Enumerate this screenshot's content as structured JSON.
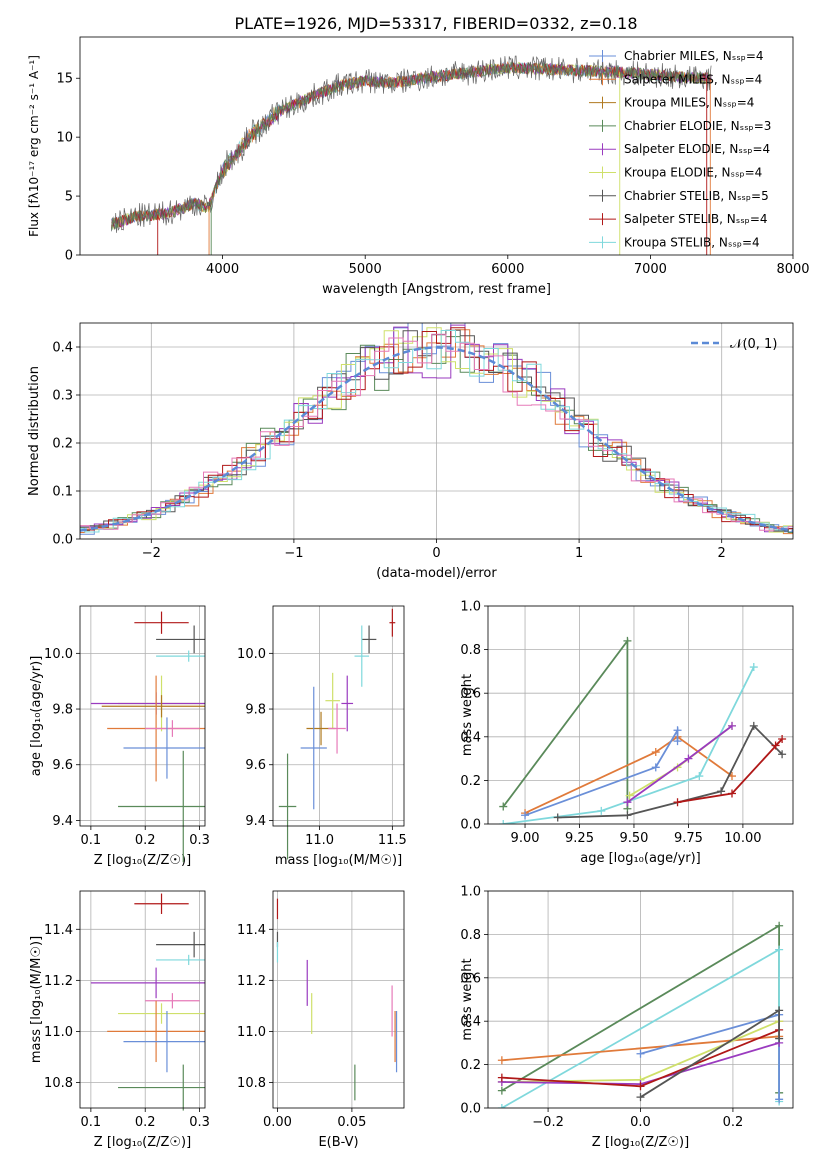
{
  "figure": {
    "title": "PLATE=1926, MJD=53317, FIBERID=0332, z=0.18"
  },
  "colors": {
    "Chabrier MILES": "#6a8fd8",
    "Salpeter MILES": "#e07a3a",
    "Kroupa MILES": "#b07a20",
    "Chabrier ELODIE": "#5a8a5a",
    "Salpeter ELODIE": "#9a3bbf",
    "Kroupa ELODIE": "#cfe06a",
    "Chabrier STELIB": "#555555",
    "Salpeter STELIB": "#b01818",
    "Kroupa STELIB": "#7fd8dc",
    "extra_pink": "#e67ab8",
    "extra_orange": "#e07a3a"
  },
  "chart_data": [
    {
      "id": "spectrum",
      "type": "line",
      "xlabel": "wavelength [Angstrom, rest frame]",
      "ylabel": "Flux [fλ10⁻¹⁷ erg cm⁻² s⁻¹ A⁻¹]",
      "xlim": [
        3000,
        8000
      ],
      "ylim": [
        0,
        18.5
      ],
      "xticks": [
        "4000",
        "5000",
        "6000",
        "7000",
        "8000"
      ],
      "yticks": [
        "0",
        "5",
        "10",
        "15"
      ],
      "legend_position": "right",
      "legend": [
        "Chabrier MILES, Nₛₛₚ=4",
        "Salpeter MILES, Nₛₛₚ=4",
        "Kroupa MILES, Nₛₛₚ=4",
        "Chabrier ELODIE, Nₛₛₚ=3",
        "Salpeter ELODIE, Nₛₛₚ=4",
        "Kroupa ELODIE, Nₛₛₚ=4",
        "Chabrier STELIB, Nₛₛₚ=5",
        "Salpeter STELIB, Nₛₛₚ=4",
        "Kroupa STELIB, Nₛₛₚ=4"
      ],
      "spectrum_anchors": {
        "x": [
          3220,
          3400,
          3600,
          3700,
          3800,
          3900,
          4000,
          4200,
          4400,
          4600,
          4800,
          5000,
          5200,
          5400,
          5600,
          5800,
          6000,
          6200,
          6400,
          6600,
          6800,
          7000,
          7200,
          7400
        ],
        "y": [
          2.6,
          3.3,
          3.5,
          3.9,
          4.4,
          4.0,
          7.2,
          10.2,
          12.2,
          13.3,
          14.3,
          14.8,
          14.6,
          15.0,
          15.3,
          15.6,
          15.9,
          15.8,
          15.7,
          15.6,
          15.5,
          15.3,
          15.1,
          15.0
        ]
      }
    },
    {
      "id": "residuals",
      "type": "line",
      "xlabel": "(data-model)/error",
      "ylabel": "Normed distribution",
      "xlim": [
        -2.5,
        2.5
      ],
      "ylim": [
        0,
        0.45
      ],
      "xticks": [
        "−2",
        "−1",
        "0",
        "1",
        "2"
      ],
      "yticks": [
        "0.0",
        "0.1",
        "0.2",
        "0.3",
        "0.4"
      ],
      "legend": [
        "𝒩(0, 1)"
      ],
      "legend_position": "top-right",
      "bin_width": 0.1
    },
    {
      "id": "age_vs_Z",
      "type": "scatter",
      "xlabel": "Z [log₁₀(Z/Z☉)]",
      "ylabel": "age  [log₁₀(age/yr)]",
      "xlim": [
        0.08,
        0.31
      ],
      "ylim": [
        9.38,
        10.17
      ],
      "xticks": [
        "0.1",
        "0.2",
        "0.3"
      ],
      "yticks": [
        "9.4",
        "9.6",
        "9.8",
        "10.0"
      ],
      "points": [
        {
          "model": "Salpeter STELIB",
          "x": 0.23,
          "y": 10.11,
          "xerr": 0.05,
          "yerr": 0.04
        },
        {
          "model": "Chabrier STELIB",
          "x": 0.29,
          "y": 10.05,
          "xerr": 0.07,
          "yerr": 0.05
        },
        {
          "model": "Kroupa STELIB",
          "x": 0.28,
          "y": 9.99,
          "xerr": 0.06,
          "yerr": 0.02
        },
        {
          "model": "Kroupa ELODIE",
          "x": 0.23,
          "y": 9.82,
          "xerr": 0.08,
          "yerr": 0.1
        },
        {
          "model": "Salpeter ELODIE",
          "x": 0.22,
          "y": 9.82,
          "xerr": 0.12,
          "yerr": 0.04
        },
        {
          "model": "Kroupa MILES",
          "x": 0.23,
          "y": 9.81,
          "xerr": 0.11,
          "yerr": 0.04
        },
        {
          "model": "Salpeter MILES",
          "x": 0.22,
          "y": 9.73,
          "xerr": 0.09,
          "yerr": 0.19
        },
        {
          "model": "extra_pink",
          "x": 0.25,
          "y": 9.73,
          "xerr": 0.05,
          "yerr": 0.03
        },
        {
          "model": "Chabrier MILES",
          "x": 0.24,
          "y": 9.66,
          "xerr": 0.08,
          "yerr": 0.11
        },
        {
          "model": "Chabrier ELODIE",
          "x": 0.27,
          "y": 9.45,
          "xerr": 0.12,
          "yerr": 0.2
        }
      ]
    },
    {
      "id": "age_vs_mass",
      "type": "scatter",
      "xlabel": "mass [log₁₀(M/M☉)]",
      "ylabel": "",
      "xlim": [
        10.68,
        11.58
      ],
      "ylim": [
        9.38,
        10.17
      ],
      "xticks": [
        "11.0",
        "11.5"
      ],
      "yticks": [
        "9.4",
        "9.6",
        "9.8",
        "10.0"
      ],
      "points": [
        {
          "model": "Salpeter STELIB",
          "x": 11.5,
          "y": 10.11,
          "xerr": 0.02,
          "yerr": 0.05
        },
        {
          "model": "Chabrier STELIB",
          "x": 11.34,
          "y": 10.05,
          "xerr": 0.05,
          "yerr": 0.05
        },
        {
          "model": "Kroupa STELIB",
          "x": 11.29,
          "y": 9.99,
          "xerr": 0.05,
          "yerr": 0.11
        },
        {
          "model": "Kroupa ELODIE",
          "x": 11.09,
          "y": 9.83,
          "xerr": 0.05,
          "yerr": 0.1
        },
        {
          "model": "Salpeter ELODIE",
          "x": 11.19,
          "y": 9.82,
          "xerr": 0.04,
          "yerr": 0.1
        },
        {
          "model": "Kroupa MILES",
          "x": 11.01,
          "y": 9.73,
          "xerr": 0.1,
          "yerr": 0.06
        },
        {
          "model": "extra_pink",
          "x": 11.12,
          "y": 9.73,
          "xerr": 0.06,
          "yerr": 0.09
        },
        {
          "model": "Chabrier MILES",
          "x": 10.96,
          "y": 9.66,
          "xerr": 0.09,
          "yerr": 0.22
        },
        {
          "model": "Chabrier ELODIE",
          "x": 10.78,
          "y": 9.45,
          "xerr": 0.06,
          "yerr": 0.19
        }
      ]
    },
    {
      "id": "massweight_vs_age",
      "type": "line",
      "xlabel": "age  [log₁₀(age/yr)]",
      "ylabel": "mass weight",
      "xlim": [
        8.83,
        10.23
      ],
      "ylim": [
        0,
        1
      ],
      "xticks": [
        "9.00",
        "9.25",
        "9.50",
        "9.75",
        "10.00"
      ],
      "yticks": [
        "0.0",
        "0.2",
        "0.4",
        "0.6",
        "0.8",
        "1.0"
      ],
      "series": [
        {
          "model": "Chabrier ELODIE",
          "x": [
            8.9,
            9.47,
            9.47
          ],
          "y": [
            0.08,
            0.84,
            0.07
          ]
        },
        {
          "model": "Salpeter MILES",
          "x": [
            9.0,
            9.6,
            9.7,
            9.95
          ],
          "y": [
            0.05,
            0.33,
            0.4,
            0.22
          ]
        },
        {
          "model": "Chabrier MILES",
          "x": [
            9.0,
            9.6,
            9.7,
            9.7
          ],
          "y": [
            0.04,
            0.26,
            0.43,
            0.38
          ]
        },
        {
          "model": "Kroupa STELIB",
          "x": [
            8.9,
            9.35,
            9.8,
            10.05
          ],
          "y": [
            0.0,
            0.06,
            0.22,
            0.72
          ]
        },
        {
          "model": "Kroupa ELODIE",
          "x": [
            9.48,
            9.7,
            9.95
          ],
          "y": [
            0.13,
            0.26,
            0.45
          ]
        },
        {
          "model": "Salpeter ELODIE",
          "x": [
            9.47,
            9.75,
            9.95
          ],
          "y": [
            0.1,
            0.3,
            0.45
          ]
        },
        {
          "model": "Chabrier STELIB",
          "x": [
            9.15,
            9.47,
            9.9,
            10.05,
            10.18
          ],
          "y": [
            0.03,
            0.04,
            0.15,
            0.45,
            0.32
          ]
        },
        {
          "model": "Salpeter STELIB",
          "x": [
            9.7,
            9.95,
            10.18,
            10.15
          ],
          "y": [
            0.1,
            0.14,
            0.39,
            0.36
          ]
        }
      ]
    },
    {
      "id": "mass_vs_Z",
      "type": "scatter",
      "xlabel": "Z [log₁₀(Z/Z☉)]",
      "ylabel": "mass [log₁₀(M/M☉)]",
      "xlim": [
        0.08,
        0.31
      ],
      "ylim": [
        10.7,
        11.55
      ],
      "xticks": [
        "0.1",
        "0.2",
        "0.3"
      ],
      "yticks": [
        "10.8",
        "11.0",
        "11.2",
        "11.4"
      ],
      "points": [
        {
          "model": "Salpeter STELIB",
          "x": 0.23,
          "y": 11.5,
          "xerr": 0.05,
          "yerr": 0.04
        },
        {
          "model": "Chabrier STELIB",
          "x": 0.29,
          "y": 11.34,
          "xerr": 0.07,
          "yerr": 0.05
        },
        {
          "model": "Kroupa STELIB",
          "x": 0.28,
          "y": 11.28,
          "xerr": 0.06,
          "yerr": 0.02
        },
        {
          "model": "Salpeter ELODIE",
          "x": 0.22,
          "y": 11.19,
          "xerr": 0.12,
          "yerr": 0.06
        },
        {
          "model": "extra_pink",
          "x": 0.25,
          "y": 11.12,
          "xerr": 0.05,
          "yerr": 0.03
        },
        {
          "model": "Kroupa ELODIE",
          "x": 0.23,
          "y": 11.07,
          "xerr": 0.08,
          "yerr": 0.04
        },
        {
          "model": "Salpeter MILES",
          "x": 0.22,
          "y": 11.0,
          "xerr": 0.09,
          "yerr": 0.12
        },
        {
          "model": "Chabrier MILES",
          "x": 0.24,
          "y": 10.96,
          "xerr": 0.08,
          "yerr": 0.12
        },
        {
          "model": "Chabrier ELODIE",
          "x": 0.27,
          "y": 10.78,
          "xerr": 0.12,
          "yerr": 0.09
        }
      ]
    },
    {
      "id": "mass_vs_ebv",
      "type": "scatter",
      "xlabel": "E(B-V)",
      "ylabel": "",
      "xlim": [
        -0.003,
        0.085
      ],
      "ylim": [
        10.7,
        11.55
      ],
      "xticks": [
        "0.00",
        "0.05"
      ],
      "yticks": [
        "10.8",
        "11.0",
        "11.2",
        "11.4"
      ],
      "points": [
        {
          "model": "Salpeter STELIB",
          "x": 0.0,
          "y": 11.48,
          "yerr": 0.04
        },
        {
          "model": "Chabrier STELIB",
          "x": 0.0,
          "y": 11.36,
          "yerr": 0.03
        },
        {
          "model": "Kroupa STELIB",
          "x": 0.0,
          "y": 11.31,
          "yerr": 0.04
        },
        {
          "model": "Salpeter ELODIE",
          "x": 0.02,
          "y": 11.19,
          "yerr": 0.09
        },
        {
          "model": "Kroupa ELODIE",
          "x": 0.023,
          "y": 11.07,
          "yerr": 0.08
        },
        {
          "model": "Chabrier ELODIE",
          "x": 0.052,
          "y": 10.8,
          "yerr": 0.07
        },
        {
          "model": "extra_pink",
          "x": 0.077,
          "y": 11.08,
          "yerr": 0.1
        },
        {
          "model": "Salpeter MILES",
          "x": 0.079,
          "y": 10.98,
          "yerr": 0.1
        },
        {
          "model": "Chabrier MILES",
          "x": 0.08,
          "y": 10.96,
          "yerr": 0.12
        }
      ]
    },
    {
      "id": "massweight_vs_Z",
      "type": "line",
      "xlabel": "Z [log₁₀(Z/Z☉)]",
      "ylabel": "mass weight",
      "xlim": [
        -0.33,
        0.33
      ],
      "ylim": [
        0,
        1
      ],
      "xticks": [
        "−0.2",
        "0.0",
        "0.2"
      ],
      "yticks": [
        "0.0",
        "0.2",
        "0.4",
        "0.6",
        "0.8",
        "1.0"
      ],
      "series": [
        {
          "model": "Chabrier ELODIE",
          "x": [
            -0.3,
            0.3,
            0.3
          ],
          "y": [
            0.08,
            0.84,
            0.07
          ]
        },
        {
          "model": "Kroupa STELIB",
          "x": [
            -0.3,
            0.3,
            0.3
          ],
          "y": [
            0.0,
            0.73,
            0.03
          ]
        },
        {
          "model": "Salpeter MILES",
          "x": [
            -0.3,
            0.3,
            0.3
          ],
          "y": [
            0.22,
            0.33,
            0.4
          ]
        },
        {
          "model": "Chabrier MILES",
          "x": [
            0.0,
            0.3,
            0.3
          ],
          "y": [
            0.25,
            0.43,
            0.04
          ]
        },
        {
          "model": "Kroupa ELODIE",
          "x": [
            -0.3,
            0.0,
            0.3
          ],
          "y": [
            0.12,
            0.13,
            0.4
          ]
        },
        {
          "model": "Salpeter ELODIE",
          "x": [
            -0.3,
            0.0,
            0.3
          ],
          "y": [
            0.12,
            0.11,
            0.3
          ]
        },
        {
          "model": "Salpeter STELIB",
          "x": [
            -0.3,
            0.0,
            0.3
          ],
          "y": [
            0.14,
            0.1,
            0.36
          ]
        },
        {
          "model": "Chabrier STELIB",
          "x": [
            0.0,
            0.3,
            0.3
          ],
          "y": [
            0.05,
            0.45,
            0.32
          ]
        }
      ]
    }
  ]
}
